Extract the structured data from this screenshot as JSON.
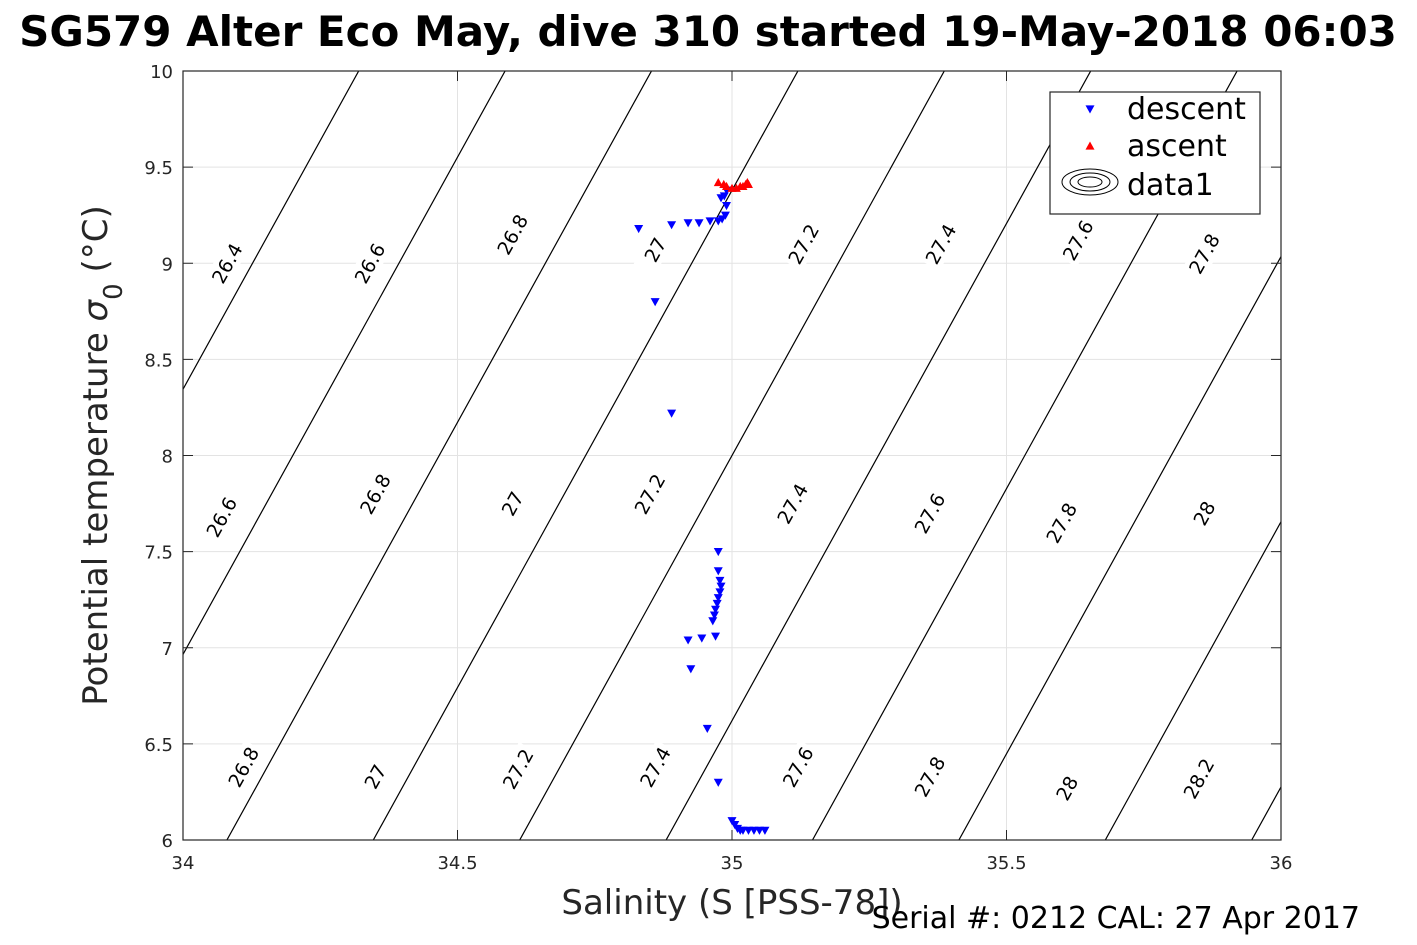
{
  "chart_data": {
    "type": "scatter",
    "title": "SG579 Alter Eco May, dive 310 started 19-May-2018 06:03",
    "xlabel": "Salinity (S [PSS-78])",
    "ylabel": "Potential temperature σ0 (°C)",
    "footer": "Serial #: 0212  CAL: 27 Apr 2017",
    "xlim": [
      34,
      36
    ],
    "ylim": [
      6,
      10
    ],
    "xticks": [
      "34",
      "34.5",
      "35",
      "35.5",
      "36"
    ],
    "yticks": [
      "6",
      "6.5",
      "7",
      "7.5",
      "8",
      "8.5",
      "9",
      "9.5",
      "10"
    ],
    "grid": true,
    "legend_position": "top-right",
    "legend": [
      "descent",
      "ascent",
      "data1"
    ],
    "contours": {
      "levels": [
        26.4,
        26.6,
        26.8,
        27.0,
        27.2,
        27.4,
        27.6,
        27.8,
        28.0,
        28.2
      ],
      "labels": [
        {
          "text": "26.4",
          "S": 34.08,
          "T": 9.0
        },
        {
          "text": "26.6",
          "S": 34.34,
          "T": 9.0
        },
        {
          "text": "26.8",
          "S": 34.6,
          "T": 9.15
        },
        {
          "text": "27",
          "S": 34.86,
          "T": 9.07
        },
        {
          "text": "27.2",
          "S": 35.13,
          "T": 9.1
        },
        {
          "text": "27.4",
          "S": 35.38,
          "T": 9.1
        },
        {
          "text": "27.6",
          "S": 35.63,
          "T": 9.12
        },
        {
          "text": "27.8",
          "S": 35.86,
          "T": 9.05
        },
        {
          "text": "26.6",
          "S": 34.07,
          "T": 7.68
        },
        {
          "text": "26.8",
          "S": 34.35,
          "T": 7.8
        },
        {
          "text": "27",
          "S": 34.6,
          "T": 7.75
        },
        {
          "text": "27.2",
          "S": 34.85,
          "T": 7.8
        },
        {
          "text": "27.4",
          "S": 35.11,
          "T": 7.75
        },
        {
          "text": "27.6",
          "S": 35.36,
          "T": 7.7
        },
        {
          "text": "27.8",
          "S": 35.6,
          "T": 7.65
        },
        {
          "text": "28",
          "S": 35.86,
          "T": 7.7
        },
        {
          "text": "26.8",
          "S": 34.11,
          "T": 6.38
        },
        {
          "text": "27",
          "S": 34.35,
          "T": 6.33
        },
        {
          "text": "27.2",
          "S": 34.61,
          "T": 6.37
        },
        {
          "text": "27.4",
          "S": 34.86,
          "T": 6.38
        },
        {
          "text": "27.6",
          "S": 35.12,
          "T": 6.38
        },
        {
          "text": "27.8",
          "S": 35.36,
          "T": 6.33
        },
        {
          "text": "28",
          "S": 35.61,
          "T": 6.27
        },
        {
          "text": "28.2",
          "S": 35.85,
          "T": 6.32
        }
      ]
    },
    "series": [
      {
        "name": "descent",
        "marker": "triangle-down",
        "color": "#0000ff",
        "points": [
          [
            34.83,
            9.18
          ],
          [
            34.86,
            8.8
          ],
          [
            34.89,
            8.22
          ],
          [
            34.89,
            9.2
          ],
          [
            34.92,
            9.21
          ],
          [
            34.94,
            9.21
          ],
          [
            34.96,
            9.22
          ],
          [
            34.975,
            9.22
          ],
          [
            34.982,
            9.23
          ],
          [
            34.988,
            9.25
          ],
          [
            34.99,
            9.3
          ],
          [
            34.986,
            9.35
          ],
          [
            34.98,
            9.34
          ],
          [
            34.99,
            9.38
          ],
          [
            34.975,
            7.5
          ],
          [
            34.975,
            7.4
          ],
          [
            34.978,
            7.35
          ],
          [
            34.98,
            7.32
          ],
          [
            34.978,
            7.29
          ],
          [
            34.975,
            7.26
          ],
          [
            34.973,
            7.23
          ],
          [
            34.97,
            7.2
          ],
          [
            34.968,
            7.17
          ],
          [
            34.965,
            7.14
          ],
          [
            34.97,
            7.06
          ],
          [
            34.945,
            7.05
          ],
          [
            34.92,
            7.04
          ],
          [
            34.925,
            6.89
          ],
          [
            34.955,
            6.58
          ],
          [
            34.975,
            6.3
          ],
          [
            35.0,
            6.1
          ],
          [
            35.005,
            6.08
          ],
          [
            35.01,
            6.06
          ],
          [
            35.015,
            6.05
          ],
          [
            35.02,
            6.05
          ],
          [
            35.03,
            6.05
          ],
          [
            35.04,
            6.05
          ],
          [
            35.05,
            6.05
          ],
          [
            35.06,
            6.05
          ]
        ]
      },
      {
        "name": "ascent",
        "marker": "triangle-up",
        "color": "#ff0000",
        "points": [
          [
            34.975,
            9.42
          ],
          [
            34.985,
            9.41
          ],
          [
            34.99,
            9.4
          ],
          [
            35.0,
            9.39
          ],
          [
            35.008,
            9.39
          ],
          [
            35.015,
            9.4
          ],
          [
            35.02,
            9.4
          ],
          [
            35.025,
            9.41
          ],
          [
            35.028,
            9.42
          ],
          [
            35.03,
            9.41
          ]
        ]
      }
    ]
  }
}
